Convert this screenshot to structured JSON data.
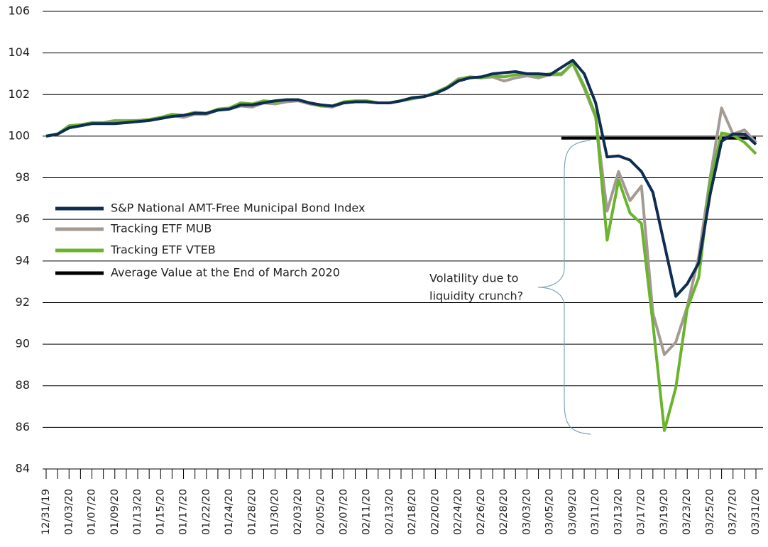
{
  "chart_data": {
    "type": "line",
    "categories": [
      "12/31/19",
      null,
      "01/03/20",
      null,
      "01/07/20",
      null,
      "01/09/20",
      null,
      "01/13/20",
      null,
      "01/15/20",
      null,
      "01/17/20",
      null,
      "01/22/20",
      null,
      "01/24/20",
      null,
      "01/28/20",
      null,
      "01/30/20",
      null,
      "02/03/20",
      null,
      "02/05/20",
      null,
      "02/07/20",
      null,
      "02/11/20",
      null,
      "02/13/20",
      null,
      "02/18/20",
      null,
      "02/20/20",
      null,
      "02/24/20",
      null,
      "02/26/20",
      null,
      "02/28/20",
      null,
      "03/03/20",
      null,
      "03/05/20",
      null,
      "03/09/20",
      null,
      "03/11/20",
      null,
      "03/13/20",
      null,
      "03/17/20",
      null,
      "03/19/20",
      null,
      "03/23/20",
      null,
      "03/25/20",
      null,
      "03/27/20",
      null,
      "03/31/20"
    ],
    "series": [
      {
        "name": "S&P National AMT-Free Municipal Bond Index",
        "color": "#0d2d52",
        "values": [
          100.0,
          100.1,
          100.4,
          100.5,
          100.6,
          100.6,
          100.6,
          100.65,
          100.7,
          100.75,
          100.85,
          100.95,
          101.0,
          101.1,
          101.1,
          101.25,
          101.3,
          101.5,
          101.5,
          101.6,
          101.7,
          101.75,
          101.75,
          101.6,
          101.5,
          101.45,
          101.6,
          101.65,
          101.65,
          101.6,
          101.6,
          101.7,
          101.85,
          101.9,
          102.05,
          102.3,
          102.65,
          102.8,
          102.85,
          103.0,
          103.05,
          103.1,
          103.0,
          103.0,
          102.95,
          103.3,
          103.65,
          103.0,
          101.6,
          99.0,
          99.05,
          98.85,
          98.3,
          97.3,
          94.8,
          92.3,
          92.9,
          93.9,
          97.2,
          99.75,
          100.1,
          100.1,
          99.6
        ]
      },
      {
        "name": "Tracking ETF MUB",
        "color": "#a39a93",
        "values": [
          100.0,
          100.1,
          100.45,
          100.5,
          100.6,
          100.65,
          100.75,
          100.75,
          100.75,
          100.8,
          100.9,
          101.0,
          100.9,
          101.05,
          101.05,
          101.25,
          101.3,
          101.45,
          101.4,
          101.6,
          101.55,
          101.65,
          101.7,
          101.55,
          101.45,
          101.4,
          101.6,
          101.65,
          101.65,
          101.6,
          101.6,
          101.7,
          101.8,
          101.9,
          102.05,
          102.35,
          102.75,
          102.85,
          102.8,
          102.85,
          102.65,
          102.8,
          102.9,
          102.8,
          102.95,
          102.95,
          103.5,
          102.3,
          100.9,
          96.4,
          98.3,
          96.9,
          97.6,
          91.5,
          89.5,
          90.1,
          91.8,
          94.2,
          98.0,
          101.35,
          100.1,
          100.3,
          99.7
        ]
      },
      {
        "name": "Tracking ETF VTEB",
        "color": "#6ab42d",
        "values": [
          100.0,
          100.1,
          100.5,
          100.55,
          100.65,
          100.65,
          100.7,
          100.7,
          100.75,
          100.8,
          100.9,
          101.05,
          101.0,
          101.15,
          101.1,
          101.3,
          101.35,
          101.6,
          101.55,
          101.7,
          101.65,
          101.75,
          101.75,
          101.6,
          101.45,
          101.45,
          101.65,
          101.7,
          101.7,
          101.6,
          101.6,
          101.7,
          101.8,
          101.9,
          102.1,
          102.35,
          102.7,
          102.85,
          102.8,
          102.9,
          102.85,
          102.95,
          103.0,
          102.9,
          103.0,
          103.0,
          103.5,
          102.4,
          101.0,
          95.0,
          97.9,
          96.3,
          95.8,
          91.0,
          85.85,
          87.9,
          91.7,
          93.2,
          97.8,
          100.15,
          100.05,
          99.7,
          99.15
        ]
      },
      {
        "name": "Average Value at the End of March 2020",
        "color": "#000000",
        "values": [
          null,
          null,
          null,
          null,
          null,
          null,
          null,
          null,
          null,
          null,
          null,
          null,
          null,
          null,
          null,
          null,
          null,
          null,
          null,
          null,
          null,
          null,
          null,
          null,
          null,
          null,
          null,
          null,
          null,
          null,
          null,
          null,
          null,
          null,
          null,
          null,
          null,
          null,
          null,
          null,
          null,
          null,
          null,
          null,
          null,
          99.9,
          99.9,
          99.9,
          99.9,
          99.9,
          99.9,
          99.9,
          99.9,
          99.9,
          99.9,
          99.9,
          99.9,
          99.9,
          99.9,
          99.9,
          99.9,
          99.9,
          99.9
        ]
      }
    ],
    "annotation": [
      "Volatility due to",
      "liquidity crunch?"
    ],
    "ylim": [
      84,
      106
    ],
    "yticks": [
      84,
      86,
      88,
      90,
      92,
      94,
      96,
      98,
      100,
      102,
      104,
      106
    ],
    "grid": true,
    "legend": "left"
  }
}
